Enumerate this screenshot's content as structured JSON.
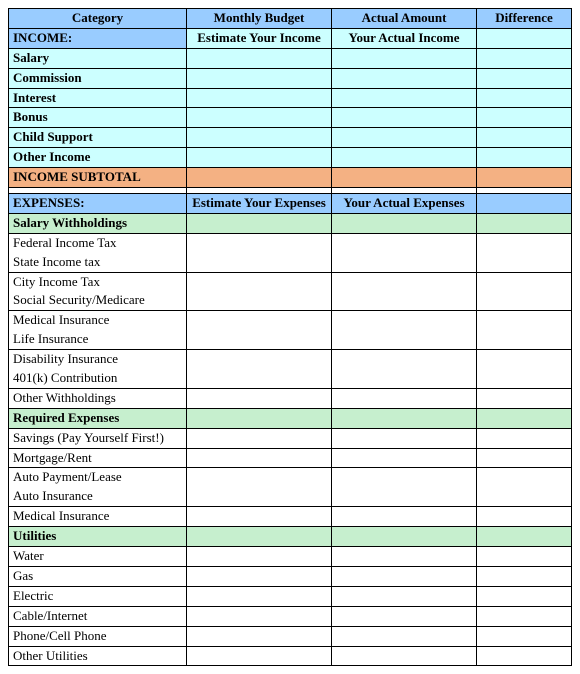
{
  "colors": {
    "blue": "#99ccff",
    "cyan": "#ccffff",
    "orange": "#f4b183",
    "green": "#c6efce",
    "white": "#ffffff",
    "border": "#000000"
  },
  "header": {
    "category": "Category",
    "budget": "Monthly Budget",
    "actual": "Actual Amount",
    "difference": "Difference"
  },
  "income": {
    "title": "INCOME:",
    "budget_hint": "Estimate Your Income",
    "actual_hint": "Your Actual Income",
    "rows": [
      "Salary",
      "Commission",
      "Interest",
      "Bonus",
      "Child Support",
      "Other Income"
    ],
    "subtotal": "INCOME SUBTOTAL"
  },
  "expenses": {
    "title": "EXPENSES:",
    "budget_hint": "Estimate Your Expenses",
    "actual_hint": "Your Actual Expenses",
    "groups": [
      {
        "label": "Salary Withholdings",
        "rows": [
          "Federal Income Tax",
          "State Income tax",
          "City Income Tax",
          "Social Security/Medicare",
          "Medical Insurance",
          "Life Insurance",
          "Disability Insurance",
          "401(k) Contribution",
          "Other Withholdings"
        ],
        "pairs": [
          [
            0,
            1
          ],
          [
            2,
            3
          ],
          [
            4,
            5
          ],
          [
            6,
            7
          ]
        ]
      },
      {
        "label": "Required Expenses",
        "rows": [
          "Savings (Pay Yourself First!)",
          "Mortgage/Rent",
          "Auto Payment/Lease",
          "Auto Insurance",
          "Medical Insurance"
        ],
        "pairs": [
          [
            2,
            3
          ]
        ]
      },
      {
        "label": "Utilities",
        "rows": [
          "Water",
          "Gas",
          "Electric",
          "Cable/Internet",
          "Phone/Cell Phone",
          "Other Utilities"
        ],
        "pairs": []
      }
    ]
  }
}
